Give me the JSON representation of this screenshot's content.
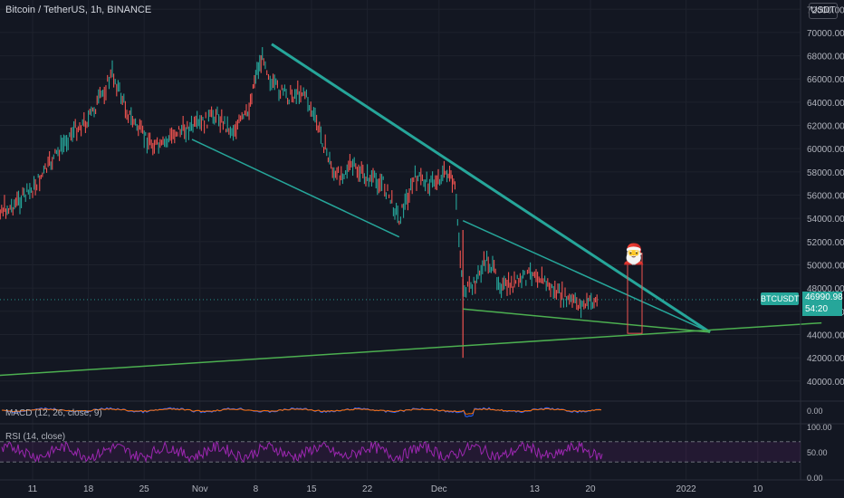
{
  "title": "Bitcoin / TetherUS, 1h, BINANCE",
  "currency_unit": "USDT",
  "symbol_badge": "BTCUSDT",
  "last_price": "46990.98",
  "countdown": "54:20",
  "macd_label": "MACD (12, 26, close, 9)",
  "rsi_label": "RSI (14, close)",
  "santa_icon": "santa-emoji",
  "colors": {
    "background": "#131722",
    "up": "#26a69a",
    "down": "#ef5350",
    "trend": "#26a69a",
    "support": "#4caf50",
    "rsi": "#9c27b0",
    "macd": "#2962ff",
    "signal": "#ff6d00"
  },
  "chart_data": [
    {
      "type": "line",
      "title": "Bitcoin / TetherUS, 1h, BINANCE",
      "x_ticks": [
        "11",
        "18",
        "25",
        "Nov",
        "8",
        "15",
        "22",
        "Dec",
        "13",
        "20",
        "2022",
        "10"
      ],
      "y_ticks": [
        "40000.00",
        "42000.00",
        "44000.00",
        "46000.00",
        "48000.00",
        "50000.00",
        "52000.00",
        "54000.00",
        "56000.00",
        "58000.00",
        "60000.00",
        "62000.00",
        "64000.00",
        "66000.00",
        "68000.00",
        "70000.00",
        "72000.00"
      ],
      "ylim": [
        38500,
        72800
      ],
      "series": [
        {
          "name": "BTCUSDT",
          "x": [
            "Oct 5",
            "Oct 8",
            "Oct 11",
            "Oct 14",
            "Oct 16",
            "Oct 18",
            "Oct 20",
            "Oct 21",
            "Oct 23",
            "Oct 25",
            "Oct 27",
            "Oct 29",
            "Nov 1",
            "Nov 3",
            "Nov 5",
            "Nov 7",
            "Nov 8",
            "Nov 9",
            "Nov 10",
            "Nov 12",
            "Nov 14",
            "Nov 16",
            "Nov 18",
            "Nov 20",
            "Nov 22",
            "Nov 24",
            "Nov 26",
            "Nov 28",
            "Nov 30",
            "Dec 2",
            "Dec 3",
            "Dec 4",
            "Dec 5",
            "Dec 7",
            "Dec 9",
            "Dec 11",
            "Dec 13",
            "Dec 15",
            "Dec 17",
            "Dec 19",
            "Dec 21"
          ],
          "values": [
            55000,
            54800,
            56500,
            59500,
            61500,
            62500,
            65000,
            66500,
            63000,
            61000,
            60000,
            61500,
            62000,
            63000,
            61500,
            63000,
            66500,
            68000,
            65500,
            64500,
            65000,
            61500,
            57500,
            58500,
            57500,
            57000,
            54000,
            57500,
            57000,
            58000,
            56500,
            48000,
            47800,
            50500,
            48000,
            48500,
            49500,
            48000,
            47000,
            46500,
            47000
          ]
        }
      ],
      "trendlines": [
        {
          "name": "descending-resistance",
          "from": [
            "Nov 10",
            69000
          ],
          "to": [
            "Jan 4",
            44200
          ]
        },
        {
          "name": "upper-falling-channel",
          "from": [
            "Oct 31",
            60800
          ],
          "to": [
            "Nov 26",
            52400
          ]
        },
        {
          "name": "wedge-upper",
          "from": [
            "Dec 4",
            53800
          ],
          "to": [
            "Jan 4",
            44200
          ]
        },
        {
          "name": "wedge-lower",
          "from": [
            "Dec 4",
            46200
          ],
          "to": [
            "Jan 4",
            44200
          ]
        },
        {
          "name": "long-term-support",
          "from": [
            "Oct 5",
            40400
          ],
          "to": [
            "Jan 18",
            45000
          ]
        }
      ]
    },
    {
      "type": "line",
      "title": "MACD (12, 26, close, 9)",
      "y_ticks": [
        "0.00"
      ]
    },
    {
      "type": "line",
      "title": "RSI (14, close)",
      "y_ticks": [
        "100.00",
        "50.00",
        "0.00"
      ],
      "ylim": [
        0,
        100
      ],
      "bands": [
        30,
        70
      ]
    }
  ]
}
